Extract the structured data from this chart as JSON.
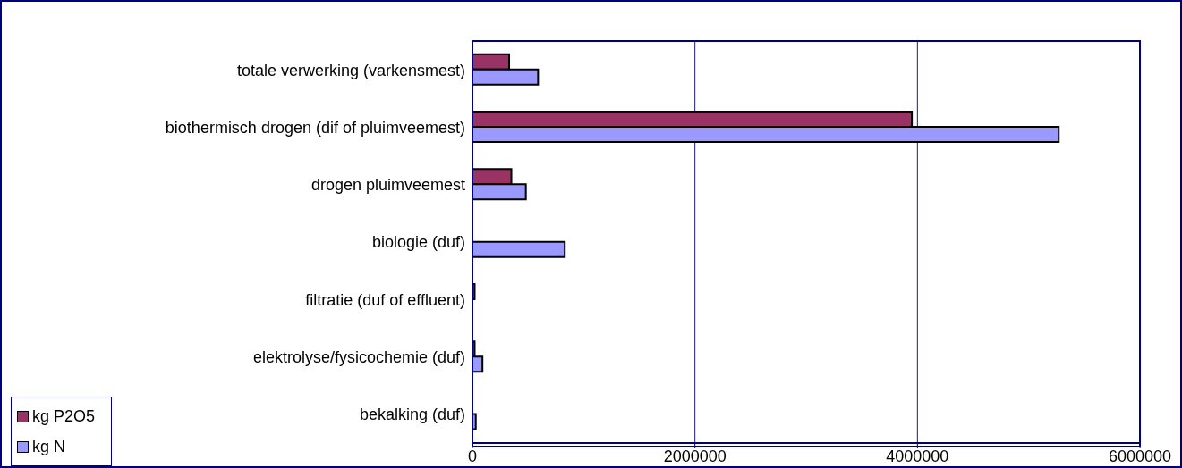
{
  "chart_data": {
    "type": "bar",
    "orientation": "horizontal",
    "categories": [
      "totale verwerking (varkensmest)",
      "biothermisch drogen (dif of pluimveemest)",
      "drogen pluimveemest ",
      "biologie (duf)",
      "filtratie (duf of effluent)",
      "elektrolyse/fysicochemie (duf)",
      "bekalking (duf)"
    ],
    "series": [
      {
        "name": "kg P2O5",
        "color": "#993366",
        "values": [
          330000,
          3950000,
          350000,
          0,
          20000,
          20000,
          0
        ]
      },
      {
        "name": "kg N",
        "color": "#9999ff",
        "values": [
          590000,
          5270000,
          480000,
          830000,
          0,
          90000,
          30000
        ]
      }
    ],
    "xlim": [
      0,
      6000000
    ],
    "xticks": [
      0,
      2000000,
      4000000,
      6000000
    ],
    "grid": "x",
    "legend": "bottom left"
  }
}
